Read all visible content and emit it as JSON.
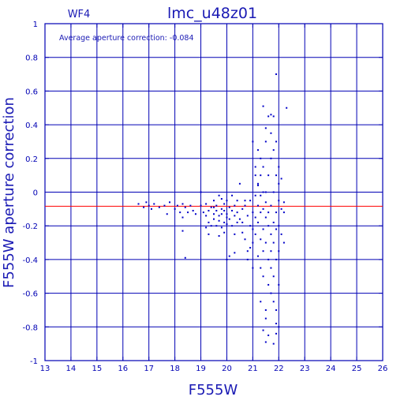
{
  "chart_data": {
    "type": "scatter",
    "title": "lmc_u48z01",
    "panel_label": "WF4",
    "annotation": "Average aperture correction: -0.084",
    "xlabel": "F555W",
    "ylabel": "F555W aperture correction",
    "xlim": [
      13,
      26
    ],
    "ylim": [
      -1,
      1
    ],
    "xticks": [
      "13",
      "14",
      "15",
      "16",
      "17",
      "18",
      "19",
      "20",
      "21",
      "22",
      "23",
      "24",
      "25",
      "26"
    ],
    "yticks": [
      "-1",
      "-0.8",
      "-0.6",
      "-0.4",
      "-0.2",
      "0",
      "0.2",
      "0.4",
      "0.6",
      "0.8",
      "1"
    ],
    "grid": true,
    "reference_line": {
      "y": -0.084,
      "color": "#ff0000"
    },
    "colors": {
      "axes": "#0000b4",
      "points": "#0000c8",
      "reference": "#ff0000"
    },
    "series": [
      {
        "points": [
          [
            16.6,
            -0.07
          ],
          [
            16.8,
            -0.09
          ],
          [
            16.9,
            -0.06
          ],
          [
            17.0,
            -0.08
          ],
          [
            17.1,
            -0.1
          ],
          [
            17.2,
            -0.07
          ],
          [
            17.4,
            -0.09
          ],
          [
            17.6,
            -0.08
          ],
          [
            17.7,
            -0.13
          ],
          [
            17.8,
            -0.06
          ],
          [
            18.0,
            -0.1
          ],
          [
            18.1,
            -0.08
          ],
          [
            18.2,
            -0.12
          ],
          [
            18.3,
            -0.15
          ],
          [
            18.3,
            -0.07
          ],
          [
            18.4,
            -0.09
          ],
          [
            18.5,
            -0.12
          ],
          [
            18.3,
            -0.23
          ],
          [
            18.4,
            -0.39
          ],
          [
            18.6,
            -0.08
          ],
          [
            18.7,
            -0.11
          ],
          [
            18.8,
            -0.13
          ],
          [
            19.0,
            -0.08
          ],
          [
            19.0,
            0.0
          ],
          [
            19.1,
            -0.12
          ],
          [
            19.2,
            -0.14
          ],
          [
            19.2,
            -0.07
          ],
          [
            19.3,
            -0.18
          ],
          [
            19.3,
            -0.11
          ],
          [
            19.4,
            -0.2
          ],
          [
            19.4,
            -0.09
          ],
          [
            19.5,
            -0.13
          ],
          [
            19.5,
            -0.05
          ],
          [
            19.5,
            -0.16
          ],
          [
            19.6,
            -0.11
          ],
          [
            19.6,
            -0.2
          ],
          [
            19.6,
            -0.08
          ],
          [
            19.7,
            -0.14
          ],
          [
            19.7,
            -0.02
          ],
          [
            19.7,
            -0.17
          ],
          [
            19.8,
            -0.1
          ],
          [
            19.8,
            -0.21
          ],
          [
            19.8,
            -0.13
          ],
          [
            19.9,
            -0.07
          ],
          [
            19.9,
            -0.18
          ],
          [
            19.9,
            -0.11
          ],
          [
            20.0,
            -0.15
          ],
          [
            20.0,
            -0.05
          ],
          [
            20.0,
            -0.19
          ],
          [
            20.0,
            -0.13
          ],
          [
            20.1,
            -0.09
          ],
          [
            20.1,
            -0.16
          ],
          [
            20.2,
            -0.11
          ],
          [
            20.2,
            -0.2
          ],
          [
            20.3,
            -0.08
          ],
          [
            20.3,
            -0.14
          ],
          [
            20.3,
            -0.25
          ],
          [
            20.4,
            -0.05
          ],
          [
            20.4,
            -0.12
          ],
          [
            20.4,
            -0.18
          ],
          [
            19.3,
            -0.25
          ],
          [
            19.7,
            -0.26
          ],
          [
            19.9,
            -0.24
          ],
          [
            20.1,
            -0.38
          ],
          [
            20.3,
            -0.36
          ],
          [
            20.0,
            -0.4
          ],
          [
            19.2,
            -0.21
          ],
          [
            19.5,
            -0.09
          ],
          [
            19.8,
            -0.04
          ],
          [
            20.2,
            -0.02
          ],
          [
            20.5,
            0.05
          ],
          [
            20.6,
            -0.1
          ],
          [
            20.6,
            -0.18
          ],
          [
            20.7,
            -0.08
          ],
          [
            20.7,
            -0.28
          ],
          [
            20.8,
            -0.14
          ],
          [
            20.8,
            -0.35
          ],
          [
            20.9,
            -0.2
          ],
          [
            20.9,
            -0.05
          ],
          [
            21.0,
            -0.12
          ],
          [
            21.0,
            -0.22
          ],
          [
            21.0,
            0.3
          ],
          [
            21.0,
            -0.3
          ],
          [
            21.1,
            -0.15
          ],
          [
            21.1,
            0.1
          ],
          [
            21.1,
            -0.25
          ],
          [
            21.1,
            0.15
          ],
          [
            21.2,
            -0.08
          ],
          [
            21.2,
            -0.18
          ],
          [
            21.2,
            -0.38
          ],
          [
            21.2,
            0.05
          ],
          [
            21.2,
            0.25
          ],
          [
            21.3,
            -0.12
          ],
          [
            21.3,
            -0.28
          ],
          [
            21.3,
            -0.45
          ],
          [
            21.3,
            0.2
          ],
          [
            21.3,
            -0.02
          ],
          [
            21.3,
            -0.65
          ],
          [
            21.4,
            -0.1
          ],
          [
            21.4,
            -0.22
          ],
          [
            21.4,
            -0.35
          ],
          [
            21.4,
            0.0
          ],
          [
            21.4,
            0.15
          ],
          [
            21.4,
            -0.5
          ],
          [
            21.5,
            -0.15
          ],
          [
            21.5,
            -0.3
          ],
          [
            21.5,
            0.3
          ],
          [
            21.5,
            -0.06
          ],
          [
            21.5,
            -0.7
          ],
          [
            21.5,
            -0.89
          ],
          [
            21.4,
            -0.82
          ],
          [
            21.4,
            0.51
          ],
          [
            21.6,
            -0.2
          ],
          [
            21.6,
            -0.4
          ],
          [
            21.6,
            0.1
          ],
          [
            21.6,
            -0.12
          ],
          [
            21.6,
            -0.55
          ],
          [
            21.6,
            0.45
          ],
          [
            21.7,
            -0.25
          ],
          [
            21.7,
            -0.08
          ],
          [
            21.7,
            0.2
          ],
          [
            21.7,
            -0.45
          ],
          [
            21.7,
            -0.35
          ],
          [
            21.7,
            -0.6
          ],
          [
            21.7,
            0.35
          ],
          [
            21.8,
            -0.18
          ],
          [
            21.8,
            -0.3
          ],
          [
            21.8,
            0.0
          ],
          [
            21.8,
            0.25
          ],
          [
            21.8,
            -0.5
          ],
          [
            21.8,
            -0.65
          ],
          [
            21.8,
            0.45
          ],
          [
            21.9,
            -0.12
          ],
          [
            21.9,
            -0.4
          ],
          [
            21.9,
            0.1
          ],
          [
            21.9,
            -0.22
          ],
          [
            21.9,
            0.3
          ],
          [
            21.9,
            -0.7
          ],
          [
            21.9,
            -0.78
          ],
          [
            21.9,
            0.7
          ],
          [
            22.0,
            -0.05
          ],
          [
            22.0,
            -0.2
          ],
          [
            22.0,
            0.15
          ],
          [
            22.0,
            -0.35
          ],
          [
            22.0,
            -0.8
          ],
          [
            22.0,
            0.05
          ],
          [
            22.1,
            -0.1
          ],
          [
            22.1,
            -0.25
          ],
          [
            22.1,
            0.08
          ],
          [
            22.2,
            -0.06
          ],
          [
            22.3,
            0.5
          ],
          [
            22.2,
            -0.12
          ],
          [
            22.2,
            -0.3
          ],
          [
            21.1,
            -0.02
          ],
          [
            21.2,
            0.04
          ],
          [
            21.3,
            0.1
          ],
          [
            21.5,
            0.38
          ],
          [
            21.7,
            0.46
          ],
          [
            21.9,
            -0.84
          ],
          [
            21.5,
            -0.75
          ],
          [
            20.8,
            -0.4
          ],
          [
            20.9,
            -0.33
          ],
          [
            21.0,
            -0.45
          ],
          [
            20.6,
            -0.24
          ],
          [
            20.5,
            -0.16
          ],
          [
            20.7,
            -0.05
          ],
          [
            21.6,
            -0.85
          ],
          [
            21.8,
            -0.9
          ],
          [
            22.0,
            -0.55
          ],
          [
            21.5,
            0.0
          ]
        ]
      }
    ]
  }
}
